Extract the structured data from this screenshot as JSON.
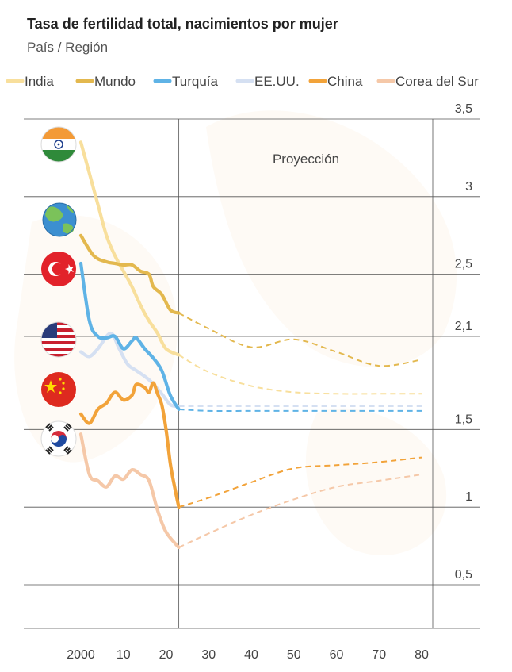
{
  "chart_data": {
    "type": "line",
    "title": "Tasa de fertilidad total, nacimientos por mujer",
    "subtitle": "País / Región",
    "annotation": "Proyección",
    "x_ticks": [
      2000,
      2010,
      2020,
      2030,
      2040,
      2050,
      2060,
      2070,
      2080
    ],
    "x_tick_labels": [
      "2000",
      "10",
      "20",
      "30",
      "40",
      "50",
      "60",
      "70",
      "80"
    ],
    "y_ticks": [
      0.5,
      1,
      1.5,
      2.1,
      2.5,
      3,
      3.5
    ],
    "y_tick_labels": [
      "0,5",
      "1",
      "1,5",
      "2,1",
      "2,5",
      "3",
      "3,5"
    ],
    "xlim": [
      2000,
      2080
    ],
    "ylim": [
      0.25,
      3.5
    ],
    "projection_start": 2023,
    "grid": true,
    "legend_position": "top",
    "series": [
      {
        "name": "India",
        "color": "#f8df9c",
        "icon": "india-flag-icon",
        "history": [
          [
            2000,
            3.35
          ],
          [
            2002,
            3.15
          ],
          [
            2004,
            2.95
          ],
          [
            2006,
            2.75
          ],
          [
            2008,
            2.62
          ],
          [
            2010,
            2.52
          ],
          [
            2012,
            2.42
          ],
          [
            2014,
            2.3
          ],
          [
            2016,
            2.2
          ],
          [
            2018,
            2.12
          ],
          [
            2020,
            2.02
          ],
          [
            2023,
            1.98
          ]
        ],
        "projection": [
          [
            2023,
            1.98
          ],
          [
            2030,
            1.87
          ],
          [
            2040,
            1.78
          ],
          [
            2050,
            1.74
          ],
          [
            2060,
            1.73
          ],
          [
            2070,
            1.73
          ],
          [
            2080,
            1.73
          ]
        ]
      },
      {
        "name": "Mundo",
        "color": "#e3b84e",
        "icon": "globe-icon",
        "history": [
          [
            2000,
            2.75
          ],
          [
            2003,
            2.62
          ],
          [
            2006,
            2.58
          ],
          [
            2008,
            2.57
          ],
          [
            2010,
            2.56
          ],
          [
            2012,
            2.56
          ],
          [
            2014,
            2.52
          ],
          [
            2016,
            2.5
          ],
          [
            2017,
            2.42
          ],
          [
            2019,
            2.37
          ],
          [
            2021,
            2.27
          ],
          [
            2023,
            2.25
          ]
        ],
        "projection": [
          [
            2023,
            2.25
          ],
          [
            2030,
            2.15
          ],
          [
            2040,
            2.03
          ],
          [
            2050,
            2.08
          ],
          [
            2060,
            2.0
          ],
          [
            2070,
            1.91
          ],
          [
            2080,
            1.95
          ]
        ]
      },
      {
        "name": "Turquía",
        "color": "#5fb3e6",
        "icon": "turkey-flag-icon",
        "history": [
          [
            2000,
            2.57
          ],
          [
            2002,
            2.2
          ],
          [
            2004,
            2.1
          ],
          [
            2006,
            2.09
          ],
          [
            2008,
            2.1
          ],
          [
            2010,
            2.02
          ],
          [
            2012,
            2.07
          ],
          [
            2013,
            2.09
          ],
          [
            2015,
            2.02
          ],
          [
            2017,
            1.96
          ],
          [
            2019,
            1.88
          ],
          [
            2021,
            1.72
          ],
          [
            2023,
            1.63
          ]
        ],
        "projection": [
          [
            2023,
            1.63
          ],
          [
            2030,
            1.62
          ],
          [
            2040,
            1.62
          ],
          [
            2050,
            1.62
          ],
          [
            2060,
            1.62
          ],
          [
            2070,
            1.62
          ],
          [
            2080,
            1.62
          ]
        ]
      },
      {
        "name": "EE.UU.",
        "color": "#d5e0f2",
        "icon": "usa-flag-icon",
        "history": [
          [
            2000,
            2.0
          ],
          [
            2002,
            1.97
          ],
          [
            2004,
            2.02
          ],
          [
            2007,
            2.12
          ],
          [
            2009,
            2.02
          ],
          [
            2011,
            1.92
          ],
          [
            2013,
            1.88
          ],
          [
            2016,
            1.82
          ],
          [
            2019,
            1.73
          ],
          [
            2021,
            1.66
          ],
          [
            2023,
            1.65
          ]
        ],
        "projection": [
          [
            2023,
            1.65
          ],
          [
            2030,
            1.65
          ],
          [
            2040,
            1.65
          ],
          [
            2050,
            1.65
          ],
          [
            2060,
            1.65
          ],
          [
            2070,
            1.65
          ],
          [
            2080,
            1.65
          ]
        ]
      },
      {
        "name": "China",
        "color": "#f2a33a",
        "icon": "china-flag-icon",
        "history": [
          [
            2000,
            1.6
          ],
          [
            2002,
            1.54
          ],
          [
            2004,
            1.63
          ],
          [
            2006,
            1.67
          ],
          [
            2008,
            1.74
          ],
          [
            2010,
            1.69
          ],
          [
            2012,
            1.72
          ],
          [
            2013,
            1.79
          ],
          [
            2015,
            1.77
          ],
          [
            2016,
            1.74
          ],
          [
            2017,
            1.8
          ],
          [
            2018,
            1.73
          ],
          [
            2019,
            1.66
          ],
          [
            2020,
            1.5
          ],
          [
            2021,
            1.28
          ],
          [
            2022,
            1.13
          ],
          [
            2023,
            1.0
          ]
        ],
        "projection": [
          [
            2023,
            1.0
          ],
          [
            2030,
            1.06
          ],
          [
            2040,
            1.16
          ],
          [
            2050,
            1.25
          ],
          [
            2060,
            1.27
          ],
          [
            2070,
            1.29
          ],
          [
            2080,
            1.32
          ]
        ]
      },
      {
        "name": "Corea del Sur",
        "color": "#f5c8a8",
        "icon": "south-korea-flag-icon",
        "history": [
          [
            2000,
            1.47
          ],
          [
            2002,
            1.21
          ],
          [
            2004,
            1.17
          ],
          [
            2006,
            1.13
          ],
          [
            2008,
            1.2
          ],
          [
            2010,
            1.18
          ],
          [
            2012,
            1.24
          ],
          [
            2014,
            1.21
          ],
          [
            2016,
            1.17
          ],
          [
            2018,
            0.98
          ],
          [
            2020,
            0.84
          ],
          [
            2023,
            0.74
          ]
        ],
        "projection": [
          [
            2023,
            0.74
          ],
          [
            2030,
            0.83
          ],
          [
            2040,
            0.95
          ],
          [
            2050,
            1.05
          ],
          [
            2060,
            1.13
          ],
          [
            2070,
            1.17
          ],
          [
            2080,
            1.21
          ]
        ]
      }
    ]
  }
}
